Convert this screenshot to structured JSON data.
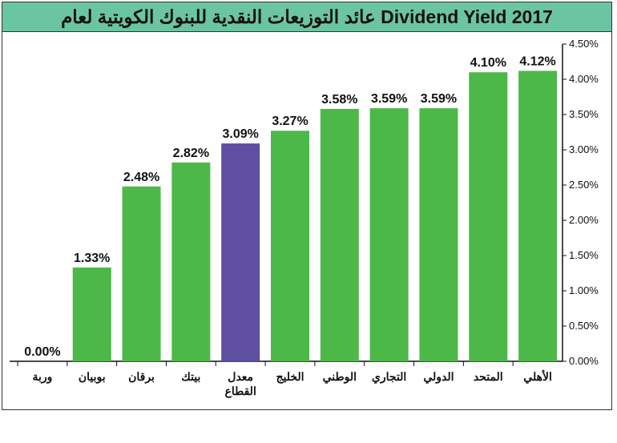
{
  "chart_data": {
    "type": "bar",
    "title": "عائد التوزيعات النقدية للبنوك الكويتية لعام Dividend Yield 2017",
    "categories": [
      "الأهلي",
      "المتحد",
      "الدولي",
      "التجاري",
      "الوطني",
      "الخليج",
      "معدل القطاع",
      "بيتك",
      "برقان",
      "بوبيان",
      "وربة"
    ],
    "category_lines": [
      [
        "الأهلي"
      ],
      [
        "المتحد"
      ],
      [
        "الدولي"
      ],
      [
        "التجاري"
      ],
      [
        "الوطني"
      ],
      [
        "الخليج"
      ],
      [
        "معدل",
        "القطاع"
      ],
      [
        "بيتك"
      ],
      [
        "برقان"
      ],
      [
        "بوبيان"
      ],
      [
        "وربة"
      ]
    ],
    "values": [
      4.12,
      4.1,
      3.59,
      3.59,
      3.58,
      3.27,
      3.09,
      2.82,
      2.48,
      1.33,
      0.0
    ],
    "value_labels": [
      "4.12%",
      "4.10%",
      "3.59%",
      "3.59%",
      "3.58%",
      "3.27%",
      "3.09%",
      "2.82%",
      "2.48%",
      "1.33%",
      "0.00%"
    ],
    "highlight_index": 6,
    "colors": {
      "bar": "#4cb848",
      "highlight": "#5e4fa2",
      "title_bg": "#6bc5a2"
    },
    "ylim": [
      0,
      4.5
    ],
    "yticks": [
      0,
      0.5,
      1.0,
      1.5,
      2.0,
      2.5,
      3.0,
      3.5,
      4.0,
      4.5
    ],
    "ytick_labels": [
      "0.00%",
      "0.50%",
      "1.00%",
      "1.50%",
      "2.00%",
      "2.50%",
      "3.00%",
      "3.50%",
      "4.00%",
      "4.50%"
    ],
    "y_axis_side": "right",
    "grid": false,
    "legend": "none"
  }
}
